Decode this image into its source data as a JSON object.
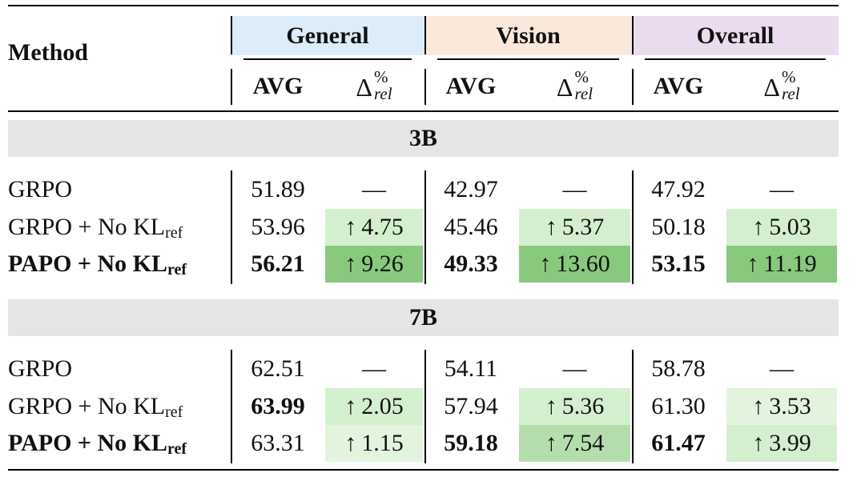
{
  "header": {
    "method_label": "Method",
    "groups": [
      {
        "label": "General",
        "color": "#dcecf8"
      },
      {
        "label": "Vision",
        "color": "#fae9db"
      },
      {
        "label": "Overall",
        "color": "#eadcee"
      }
    ],
    "avg_label": "AVG",
    "delta_symbol": "Δ",
    "delta_superscript": "%",
    "delta_subscript": "rel"
  },
  "sections": [
    {
      "label": "3B",
      "rows": [
        {
          "method": "GRPO",
          "method_sub": "",
          "bold": false,
          "general_avg": "51.89",
          "general_delta": "—",
          "vision_avg": "42.97",
          "vision_delta": "—",
          "overall_avg": "47.92",
          "overall_delta": "—"
        },
        {
          "method": "GRPO + No KL",
          "method_sub": "ref",
          "bold": false,
          "general_avg": "53.96",
          "general_delta": "4.75",
          "vision_avg": "45.46",
          "vision_delta": "5.37",
          "overall_avg": "50.18",
          "overall_delta": "5.03"
        },
        {
          "method": "PAPO + No KL",
          "method_sub": "ref",
          "bold": true,
          "general_avg": "56.21",
          "general_delta": "9.26",
          "vision_avg": "49.33",
          "vision_delta": "13.60",
          "overall_avg": "53.15",
          "overall_delta": "11.19"
        }
      ]
    },
    {
      "label": "7B",
      "rows": [
        {
          "method": "GRPO",
          "method_sub": "",
          "bold": false,
          "general_avg": "62.51",
          "general_delta": "—",
          "vision_avg": "54.11",
          "vision_delta": "—",
          "overall_avg": "58.78",
          "overall_delta": "—"
        },
        {
          "method": "GRPO + No KL",
          "method_sub": "ref",
          "bold": false,
          "general_avg": "63.99",
          "general_delta": "2.05",
          "vision_avg": "57.94",
          "vision_delta": "5.36",
          "overall_avg": "61.30",
          "overall_delta": "3.53"
        },
        {
          "method": "PAPO + No KL",
          "method_sub": "ref",
          "bold": true,
          "general_avg": "63.31",
          "general_delta": "1.15",
          "vision_avg": "59.18",
          "vision_delta": "7.54",
          "overall_avg": "61.47",
          "overall_delta": "3.99"
        }
      ]
    }
  ],
  "bold_avgs": {
    "s0r2": [
      "general",
      "vision",
      "overall"
    ],
    "s1r1": [
      "general"
    ],
    "s1r2": [
      "vision",
      "overall"
    ]
  },
  "colors": {
    "green_light": "#e2f4de",
    "green_light2": "#d4efcf",
    "green_mid": "#b4dfac",
    "green_dark": "#88c97e",
    "section_bg": "#e5e5e5"
  }
}
